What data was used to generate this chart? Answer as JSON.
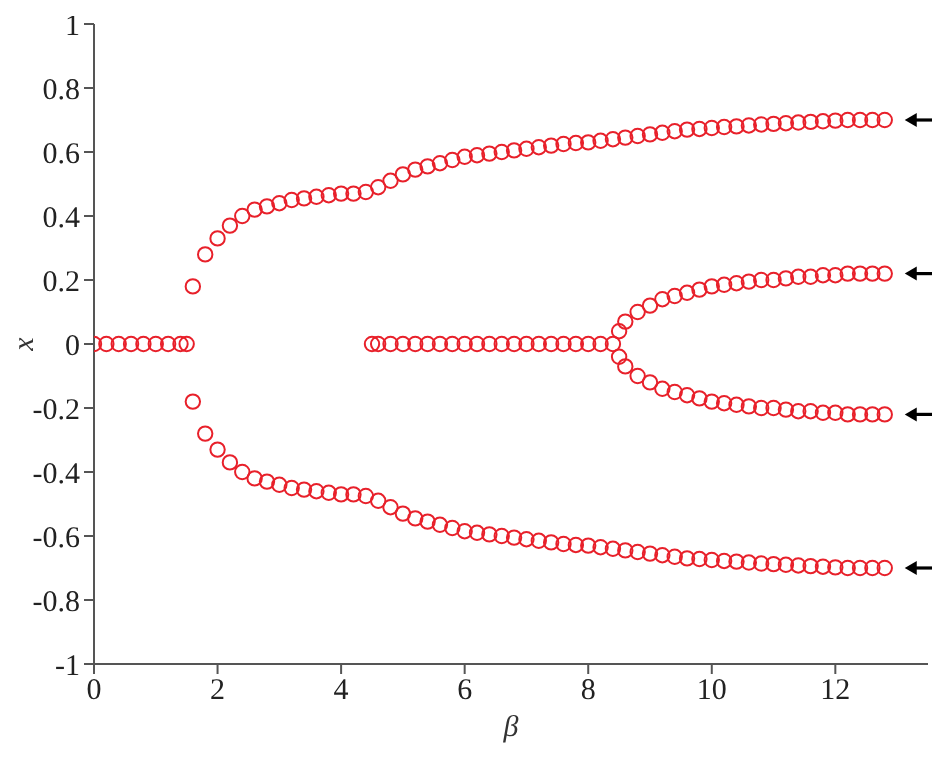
{
  "chart_data": {
    "type": "scatter",
    "xlabel": "β",
    "ylabel": "x",
    "xlim": [
      0,
      13.5
    ],
    "xticks": [
      0,
      2,
      4,
      6,
      8,
      10,
      12
    ],
    "ylim": [
      -1,
      1
    ],
    "yticks": [
      -1,
      -0.8,
      -0.6,
      -0.4,
      -0.2,
      0,
      0.2,
      0.4,
      0.6,
      0.8,
      1
    ],
    "marker": "circle",
    "series": [
      {
        "color": "#e8202a",
        "x": [
          0,
          0.2,
          0.4,
          0.6,
          0.8,
          1.0,
          1.2,
          1.4,
          1.5
        ],
        "values": [
          0,
          0,
          0,
          0,
          0,
          0,
          0,
          0,
          0
        ]
      },
      {
        "color": "#e8202a",
        "x": [
          1.6,
          1.8,
          2.0,
          2.2,
          2.4,
          2.6,
          2.8,
          3.0,
          3.2,
          3.4,
          3.6,
          3.8,
          4.0,
          4.2,
          4.4,
          4.6,
          4.8,
          5.0,
          5.2,
          5.4,
          5.6,
          5.8,
          6.0,
          6.2,
          6.4,
          6.6,
          6.8,
          7.0,
          7.2,
          7.4,
          7.6,
          7.8,
          8.0,
          8.2,
          8.4,
          8.6,
          8.8,
          9.0,
          9.2,
          9.4,
          9.6,
          9.8,
          10.0,
          10.2,
          10.4,
          10.6,
          10.8,
          11.0,
          11.2,
          11.4,
          11.6,
          11.8,
          12.0,
          12.2,
          12.4,
          12.6,
          12.8
        ],
        "values": [
          0.18,
          0.28,
          0.33,
          0.37,
          0.4,
          0.42,
          0.43,
          0.44,
          0.45,
          0.455,
          0.46,
          0.465,
          0.47,
          0.47,
          0.475,
          0.49,
          0.51,
          0.53,
          0.545,
          0.555,
          0.565,
          0.575,
          0.585,
          0.59,
          0.595,
          0.6,
          0.605,
          0.61,
          0.615,
          0.62,
          0.625,
          0.628,
          0.63,
          0.635,
          0.64,
          0.645,
          0.65,
          0.655,
          0.66,
          0.665,
          0.67,
          0.672,
          0.675,
          0.678,
          0.68,
          0.683,
          0.686,
          0.688,
          0.69,
          0.692,
          0.694,
          0.696,
          0.698,
          0.7,
          0.7,
          0.7,
          0.7
        ]
      },
      {
        "color": "#e8202a",
        "x": [
          1.6,
          1.8,
          2.0,
          2.2,
          2.4,
          2.6,
          2.8,
          3.0,
          3.2,
          3.4,
          3.6,
          3.8,
          4.0,
          4.2,
          4.4,
          4.6,
          4.8,
          5.0,
          5.2,
          5.4,
          5.6,
          5.8,
          6.0,
          6.2,
          6.4,
          6.6,
          6.8,
          7.0,
          7.2,
          7.4,
          7.6,
          7.8,
          8.0,
          8.2,
          8.4,
          8.6,
          8.8,
          9.0,
          9.2,
          9.4,
          9.6,
          9.8,
          10.0,
          10.2,
          10.4,
          10.6,
          10.8,
          11.0,
          11.2,
          11.4,
          11.6,
          11.8,
          12.0,
          12.2,
          12.4,
          12.6,
          12.8
        ],
        "values": [
          -0.18,
          -0.28,
          -0.33,
          -0.37,
          -0.4,
          -0.42,
          -0.43,
          -0.44,
          -0.45,
          -0.455,
          -0.46,
          -0.465,
          -0.47,
          -0.47,
          -0.475,
          -0.49,
          -0.51,
          -0.53,
          -0.545,
          -0.555,
          -0.565,
          -0.575,
          -0.585,
          -0.59,
          -0.595,
          -0.6,
          -0.605,
          -0.61,
          -0.615,
          -0.62,
          -0.625,
          -0.628,
          -0.63,
          -0.635,
          -0.64,
          -0.645,
          -0.65,
          -0.655,
          -0.66,
          -0.665,
          -0.67,
          -0.672,
          -0.675,
          -0.678,
          -0.68,
          -0.683,
          -0.686,
          -0.688,
          -0.69,
          -0.692,
          -0.694,
          -0.696,
          -0.698,
          -0.7,
          -0.7,
          -0.7,
          -0.7
        ]
      },
      {
        "color": "#e8202a",
        "x": [
          4.5,
          4.6,
          4.8,
          5.0,
          5.2,
          5.4,
          5.6,
          5.8,
          6.0,
          6.2,
          6.4,
          6.6,
          6.8,
          7.0,
          7.2,
          7.4,
          7.6,
          7.8,
          8.0,
          8.2,
          8.4
        ],
        "values": [
          0,
          0,
          0,
          0,
          0,
          0,
          0,
          0,
          0,
          0,
          0,
          0,
          0,
          0,
          0,
          0,
          0,
          0,
          0,
          0,
          0
        ]
      },
      {
        "color": "#e8202a",
        "x": [
          8.5,
          8.6,
          8.8,
          9.0,
          9.2,
          9.4,
          9.6,
          9.8,
          10.0,
          10.2,
          10.4,
          10.6,
          10.8,
          11.0,
          11.2,
          11.4,
          11.6,
          11.8,
          12.0,
          12.2,
          12.4,
          12.6,
          12.8
        ],
        "values": [
          0.04,
          0.07,
          0.1,
          0.12,
          0.14,
          0.15,
          0.16,
          0.17,
          0.18,
          0.185,
          0.19,
          0.195,
          0.2,
          0.2,
          0.205,
          0.21,
          0.21,
          0.215,
          0.215,
          0.22,
          0.22,
          0.22,
          0.22
        ]
      },
      {
        "color": "#e8202a",
        "x": [
          8.5,
          8.6,
          8.8,
          9.0,
          9.2,
          9.4,
          9.6,
          9.8,
          10.0,
          10.2,
          10.4,
          10.6,
          10.8,
          11.0,
          11.2,
          11.4,
          11.6,
          11.8,
          12.0,
          12.2,
          12.4,
          12.6,
          12.8
        ],
        "values": [
          -0.04,
          -0.07,
          -0.1,
          -0.12,
          -0.14,
          -0.15,
          -0.16,
          -0.17,
          -0.18,
          -0.185,
          -0.19,
          -0.195,
          -0.2,
          -0.2,
          -0.205,
          -0.21,
          -0.21,
          -0.215,
          -0.215,
          -0.22,
          -0.22,
          -0.22,
          -0.22
        ]
      }
    ]
  }
}
